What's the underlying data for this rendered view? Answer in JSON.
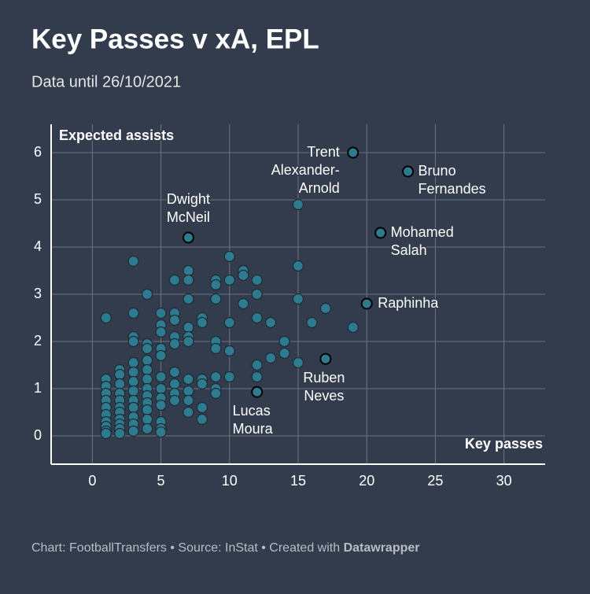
{
  "chart_data": {
    "type": "scatter",
    "title": "Key Passes v xA, EPL",
    "subtitle": "Data until 26/10/2021",
    "y_label": "Expected assists",
    "x_label": "Key passes",
    "footer": {
      "text": "Chart: FootballTransfers • Source: InStat • Created with ",
      "brand": "Datawrapper"
    },
    "xlim": [
      -3,
      33
    ],
    "ylim": [
      -0.6,
      6.6
    ],
    "xticks": [
      0,
      5,
      10,
      15,
      20,
      25,
      30
    ],
    "yticks": [
      0,
      1,
      2,
      3,
      4,
      5,
      6
    ],
    "grid": true,
    "color": "#2e7a8e",
    "x": [
      1,
      1,
      1,
      1,
      1,
      1,
      1,
      1,
      1,
      1,
      1,
      2,
      2,
      2,
      2,
      2,
      2,
      2,
      2,
      2,
      2,
      2,
      3,
      3,
      3,
      3,
      3,
      3,
      3,
      3,
      3,
      3,
      3,
      3,
      3,
      4,
      4,
      4,
      4,
      4,
      4,
      4,
      4,
      4,
      4,
      4,
      4,
      5,
      5,
      5,
      5,
      5,
      5,
      5,
      5,
      5,
      5,
      5,
      5,
      6,
      6,
      6,
      6,
      6,
      6,
      6,
      6,
      6,
      7,
      7,
      7,
      7,
      7,
      7,
      7,
      7,
      7,
      7,
      8,
      8,
      8,
      8,
      8,
      8,
      9,
      9,
      9,
      9,
      9,
      9,
      9,
      9,
      10,
      10,
      10,
      10,
      10,
      11,
      11,
      11,
      12,
      12,
      12,
      12,
      12,
      13,
      13,
      14,
      14,
      15,
      15,
      15,
      15,
      16,
      17,
      19
    ],
    "values": [
      2.5,
      1.2,
      1.05,
      0.9,
      0.75,
      0.6,
      0.45,
      0.3,
      0.2,
      0.1,
      0.05,
      1.4,
      1.3,
      1.1,
      0.9,
      0.75,
      0.6,
      0.5,
      0.35,
      0.25,
      0.15,
      0.05,
      3.7,
      2.6,
      2.1,
      2.0,
      1.55,
      1.35,
      1.15,
      0.95,
      0.75,
      0.6,
      0.4,
      0.25,
      0.1,
      3.0,
      1.95,
      1.85,
      1.6,
      1.4,
      1.2,
      1.0,
      0.85,
      0.7,
      0.55,
      0.35,
      0.15,
      2.6,
      2.35,
      2.2,
      1.85,
      1.7,
      1.25,
      1.0,
      0.8,
      0.65,
      0.3,
      0.15,
      0.08,
      3.3,
      2.6,
      2.45,
      2.1,
      1.95,
      1.35,
      1.1,
      0.9,
      0.75,
      3.5,
      3.3,
      2.9,
      2.3,
      2.1,
      2.0,
      1.2,
      0.95,
      0.75,
      0.5,
      2.5,
      2.4,
      1.2,
      1.1,
      0.6,
      0.35,
      3.3,
      3.2,
      2.9,
      2.0,
      1.85,
      1.25,
      1.0,
      0.9,
      3.8,
      3.3,
      2.4,
      1.8,
      1.25,
      3.5,
      3.4,
      2.8,
      3.3,
      3.0,
      2.5,
      1.5,
      1.25,
      2.4,
      1.65,
      2.0,
      1.75,
      4.9,
      3.6,
      2.9,
      1.55,
      2.4,
      2.7,
      2.3
    ],
    "labeled_points": [
      {
        "label": [
          "Trent",
          "Alexander-",
          "Arnold"
        ],
        "x": 19,
        "y": 6.0
      },
      {
        "label": [
          "Bruno",
          "Fernandes"
        ],
        "x": 23,
        "y": 5.6
      },
      {
        "label": [
          "Dwight",
          "McNeil"
        ],
        "x": 7,
        "y": 4.2
      },
      {
        "label": [
          "Mohamed",
          "Salah"
        ],
        "x": 21,
        "y": 4.3
      },
      {
        "label": [
          "Raphinha"
        ],
        "x": 20,
        "y": 2.8
      },
      {
        "label": [
          "Ruben",
          "Neves"
        ],
        "x": 17,
        "y": 1.63
      },
      {
        "label": [
          "Lucas",
          "Moura"
        ],
        "x": 12,
        "y": 0.93
      }
    ]
  }
}
